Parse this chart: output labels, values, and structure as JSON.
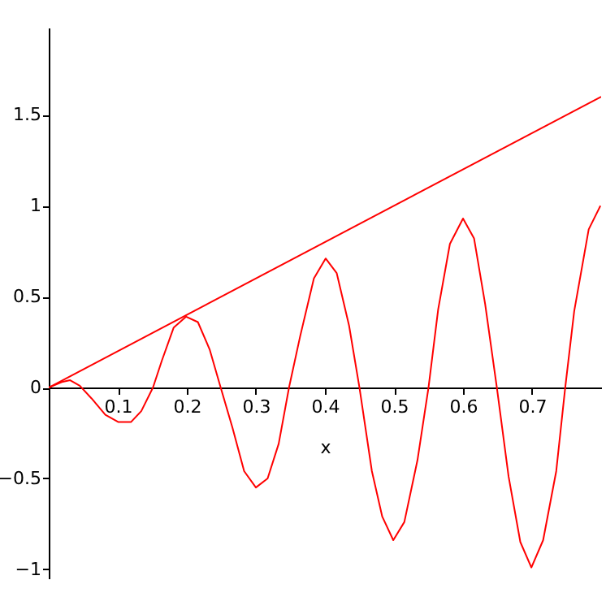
{
  "chart_data": {
    "type": "line",
    "xlabel": "x",
    "xlim": [
      0,
      0.8
    ],
    "ylim": [
      -1.05,
      1.98
    ],
    "xticks": [
      0.1,
      0.2,
      0.3,
      0.4,
      0.5,
      0.6,
      0.7
    ],
    "yticks": [
      -1,
      -0.5,
      0,
      0.5,
      1,
      1.5
    ],
    "grid": false,
    "marker": "none",
    "line_style": "solid",
    "series": [
      {
        "color": "#ff0000",
        "x": [
          0,
          0.8
        ],
        "values": [
          0,
          1.6
        ]
      },
      {
        "color": "#ff0000",
        "x": [
          0,
          0.019,
          0.031,
          0.045,
          0.062,
          0.082,
          0.101,
          0.119,
          0.134,
          0.151,
          0.164,
          0.181,
          0.199,
          0.216,
          0.233,
          0.249,
          0.266,
          0.283,
          0.3,
          0.317,
          0.333,
          0.348,
          0.364,
          0.384,
          0.401,
          0.417,
          0.435,
          0.45,
          0.468,
          0.483,
          0.499,
          0.515,
          0.534,
          0.55,
          0.564,
          0.581,
          0.6,
          0.616,
          0.632,
          0.649,
          0.666,
          0.683,
          0.699,
          0.716,
          0.735,
          0.748,
          0.761,
          0.782,
          0.799
        ],
        "values": [
          0,
          0.03,
          0.04,
          0.01,
          -0.06,
          -0.15,
          -0.19,
          -0.19,
          -0.13,
          0,
          0.15,
          0.33,
          0.39,
          0.36,
          0.21,
          0,
          -0.22,
          -0.46,
          -0.55,
          -0.5,
          -0.31,
          0,
          0.28,
          0.6,
          0.71,
          0.63,
          0.34,
          0,
          -0.46,
          -0.71,
          -0.84,
          -0.74,
          -0.4,
          0,
          0.43,
          0.79,
          0.93,
          0.82,
          0.46,
          0,
          -0.49,
          -0.85,
          -0.99,
          -0.84,
          -0.46,
          0,
          0.42,
          0.87,
          1.0
        ]
      }
    ]
  }
}
